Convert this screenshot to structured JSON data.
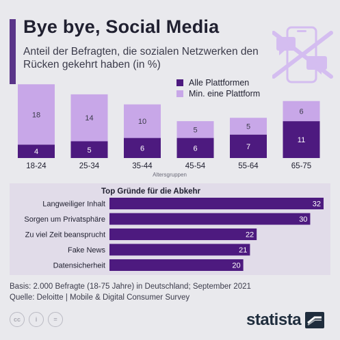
{
  "header": {
    "title": "Bye bye, Social Media",
    "subtitle": "Anteil der Befragten, die sozialen Netzwerken den Rücken gekehrt haben (in %)"
  },
  "colors": {
    "dark_purple": "#4d1a7f",
    "light_purple": "#c8a7e8",
    "accent": "#5a3589",
    "icon_light": "#d4bdf0"
  },
  "chart_data": [
    {
      "type": "bar",
      "stacked": true,
      "categories": [
        "18-24",
        "25-34",
        "35-44",
        "45-54",
        "55-64",
        "65-75"
      ],
      "series": [
        {
          "name": "Alle Plattformen",
          "values": [
            4,
            5,
            6,
            6,
            7,
            11
          ]
        },
        {
          "name": "Min. eine Plattform",
          "values": [
            18,
            14,
            10,
            5,
            5,
            6
          ]
        }
      ],
      "xlabel": "Altersgruppen",
      "ylabel": "",
      "legend": "top-right"
    },
    {
      "type": "bar",
      "orientation": "horizontal",
      "title": "Top Gründe für die Abkehr",
      "categories": [
        "Langweiliger Inhalt",
        "Sorgen um Privatsphäre",
        "Zu viel Zeit beansprucht",
        "Fake News",
        "Datensicherheit"
      ],
      "values": [
        32,
        30,
        22,
        21,
        20
      ],
      "xlim": [
        0,
        32
      ]
    }
  ],
  "footer": {
    "basis": "Basis: 2.000 Befragte (18-75 Jahre) in Deutschland; September 2021",
    "source": "Quelle: Deloitte | Mobile & Digital Consumer Survey"
  },
  "license_icons": [
    "cc-icon",
    "attribution-icon",
    "no-derivatives-icon"
  ],
  "logo": {
    "text": "statista"
  }
}
